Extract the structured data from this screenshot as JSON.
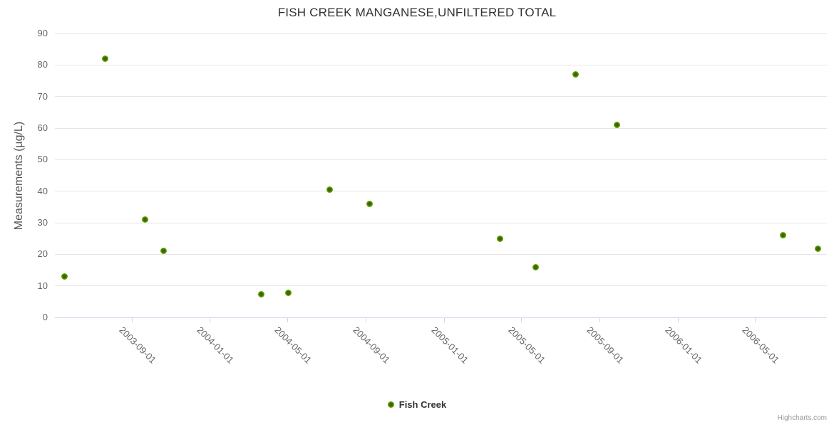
{
  "title": "FISH CREEK MANGANESE,UNFILTERED TOTAL",
  "y_axis": {
    "title": "Measurements (µg/L)"
  },
  "legend": {
    "label": "Fish Creek"
  },
  "credits": {
    "label": "Highcharts.com"
  },
  "colors": {
    "title_text": "#333333",
    "axis_label_text": "#666666",
    "gridline": "#e6e6e6",
    "axis_line": "#ccd6eb",
    "marker_outer": "#7db504",
    "marker_center": "#336905"
  },
  "chart_data": {
    "type": "scatter",
    "title": "FISH CREEK MANGANESE,UNFILTERED TOTAL",
    "xlabel": "",
    "ylabel": "Measurements (µg/L)",
    "ylim": [
      0,
      90
    ],
    "y_ticks": [
      0,
      10,
      20,
      30,
      40,
      50,
      60,
      70,
      80,
      90
    ],
    "x_type": "datetime",
    "x_range": [
      "2003-05-04",
      "2006-08-22"
    ],
    "x_ticks": [
      "2003-09-01",
      "2004-01-01",
      "2004-05-01",
      "2004-09-01",
      "2005-01-01",
      "2005-05-01",
      "2005-09-01",
      "2006-01-01",
      "2006-05-01"
    ],
    "grid": "horizontal",
    "legend_position": "bottom-center",
    "series": [
      {
        "name": "Fish Creek",
        "color": "#7db504",
        "color_center": "#336905",
        "points": [
          {
            "x": "2003-05-19",
            "y": 13
          },
          {
            "x": "2003-07-21",
            "y": 82
          },
          {
            "x": "2003-09-22",
            "y": 31
          },
          {
            "x": "2003-10-21",
            "y": 21
          },
          {
            "x": "2004-03-21",
            "y": 7.3
          },
          {
            "x": "2004-05-03",
            "y": 7.7
          },
          {
            "x": "2004-07-06",
            "y": 40.5
          },
          {
            "x": "2004-09-07",
            "y": 36
          },
          {
            "x": "2005-03-29",
            "y": 25
          },
          {
            "x": "2005-05-24",
            "y": 15.8
          },
          {
            "x": "2005-07-26",
            "y": 77
          },
          {
            "x": "2005-09-28",
            "y": 61
          },
          {
            "x": "2006-06-15",
            "y": 26
          },
          {
            "x": "2006-08-08",
            "y": 21.8
          }
        ]
      }
    ]
  }
}
